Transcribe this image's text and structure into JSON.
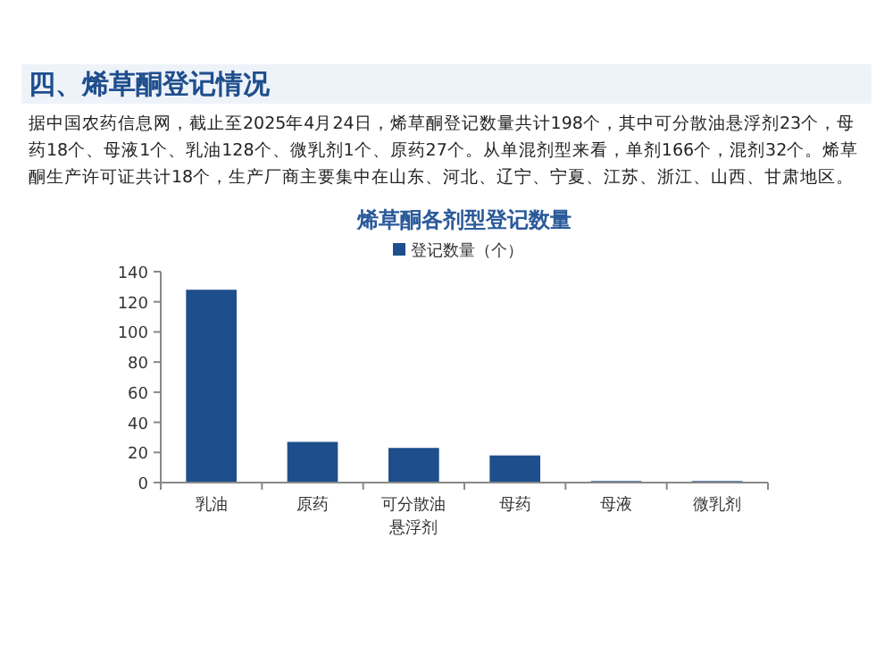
{
  "chart_data": {
    "type": "bar",
    "title": "烯草酮各剂型登记数量",
    "subtitle": "四、烯草酮登记情况",
    "annotations": [
      "据中国农药信息网，截止至2025年4月24日，烯草酮登记数量共计198个，其中可分散油悬浮剂23个，母药18个、母液1个、乳油128个、微乳剂1个、原药27个。从单混剂型来看，单剂166个，混剂32个。烯草酮生产许可证共计18个，生产厂商主要集中在山东、河北、辽宁、宁夏、江苏、浙江、山西、甘肃地区。"
    ],
    "categories": [
      "乳油",
      "原药",
      "可分散油悬浮剂",
      "母药",
      "母液",
      "微乳剂"
    ],
    "series": [
      {
        "name": "登记数量（个）",
        "color": "#1f4e8c",
        "values": [
          128,
          27,
          23,
          18,
          1,
          1
        ]
      }
    ],
    "ylim": [
      0,
      140
    ],
    "yticks": [
      0,
      20,
      40,
      60,
      80,
      100,
      120,
      140
    ],
    "grid": false,
    "legend": "top"
  }
}
